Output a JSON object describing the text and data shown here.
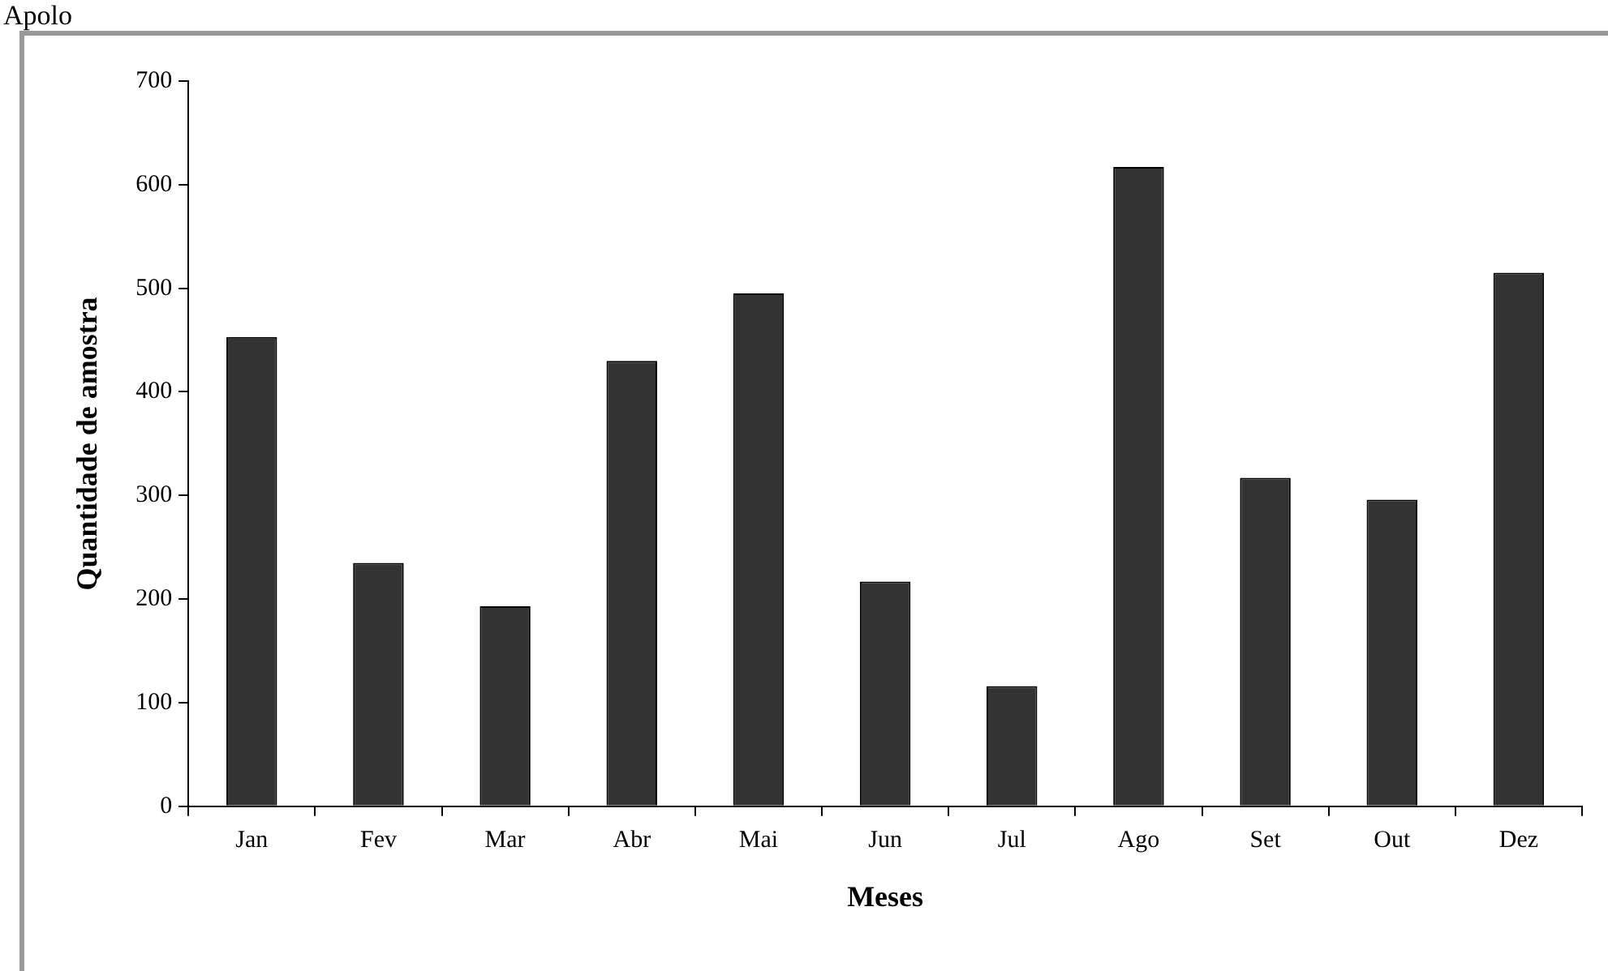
{
  "chart_data": {
    "type": "bar",
    "xlabel": "Meses",
    "ylabel": "Quantidade de amostra",
    "categories": [
      "Jan",
      "Fev",
      "Mar",
      "Abr",
      "Mai",
      "Jun",
      "Jul",
      "Ago",
      "Set",
      "Out",
      "Dez"
    ],
    "values": [
      453,
      235,
      193,
      430,
      495,
      217,
      116,
      617,
      317,
      296,
      515
    ],
    "color": "#333333",
    "ylim": [
      0,
      700
    ],
    "yticks": [
      0,
      100,
      200,
      300,
      400,
      500,
      600,
      700
    ],
    "grid": false,
    "legend": false,
    "annotations": [
      "Apolo"
    ]
  }
}
